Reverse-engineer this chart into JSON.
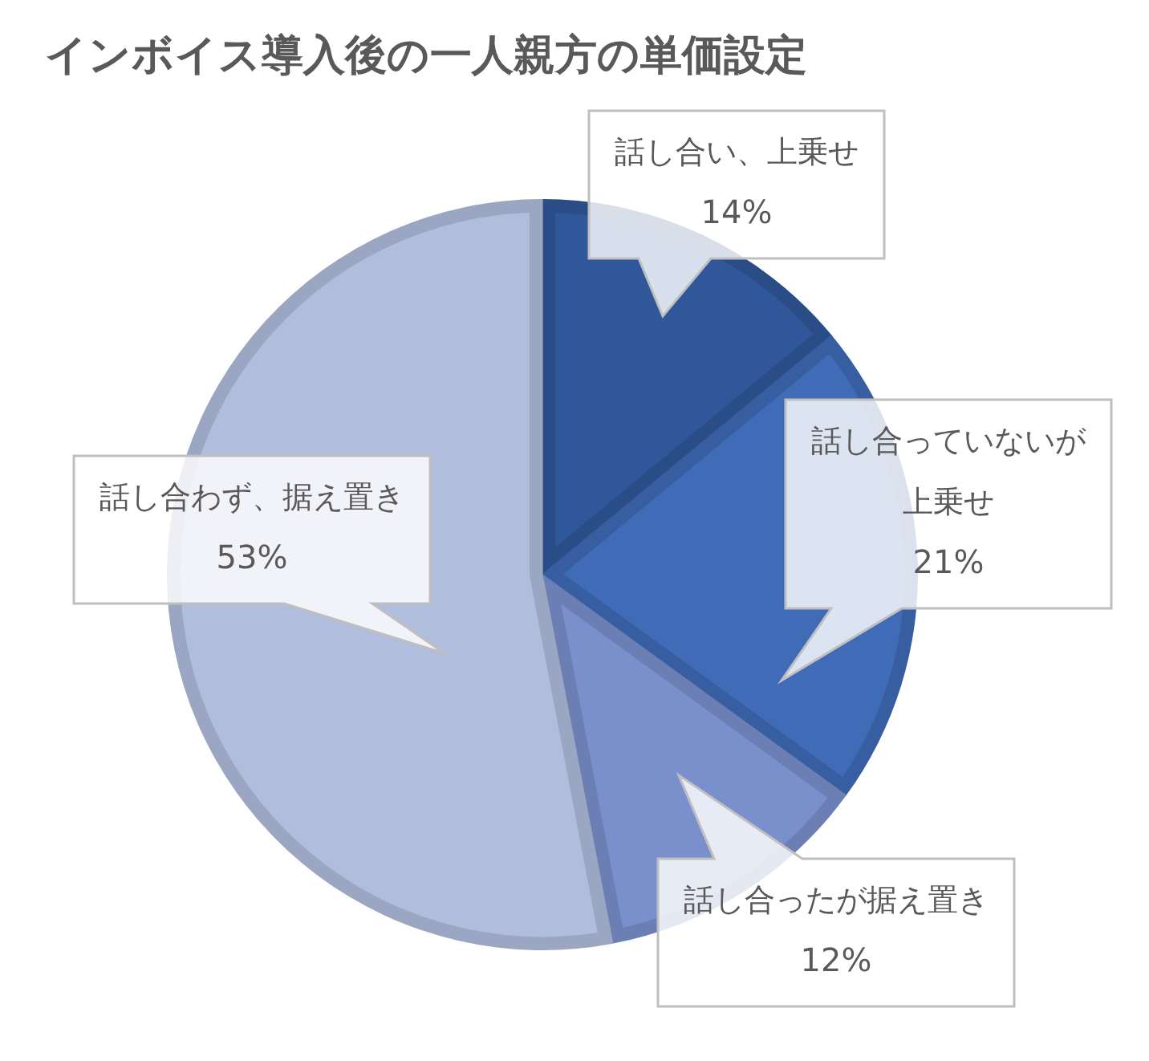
{
  "chart_data": {
    "type": "pie",
    "title": "インボイス導入後の一人親方の単価設定",
    "categories": [
      "話し合い、上乗せ",
      "話し合っていないが上乗せ",
      "話し合ったが据え置き",
      "話し合わず、据え置き"
    ],
    "values": [
      14,
      21,
      12,
      53
    ],
    "colors": [
      "#30579a",
      "#3f6bb7",
      "#7a90cd",
      "#b0bddc"
    ],
    "value_labels": [
      "14%",
      "21%",
      "12%",
      "53%"
    ],
    "legend": false
  }
}
